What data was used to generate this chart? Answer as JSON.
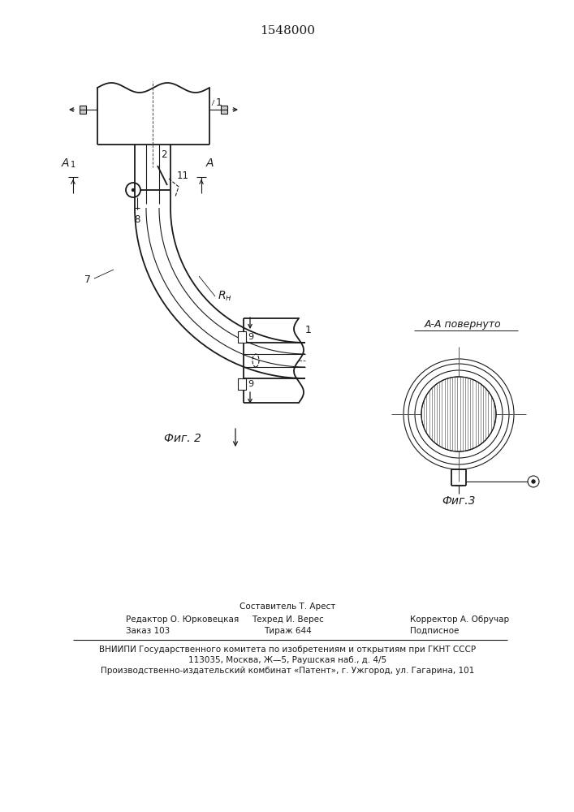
{
  "title": "1548000",
  "bg_color": "#ffffff",
  "line_color": "#1a1a1a",
  "fig2_label": "Фиг. 2",
  "fig3_label": "Фиг.3",
  "section_label": "А-А повернуто",
  "footer_line1": "Составитель Т. Арест",
  "footer_line2_col1": "Редактор О. Юрковецкая",
  "footer_line2_col2": "Техред И. Верес",
  "footer_line2_col3": "Корректор А. Обручар",
  "footer_line3_col1": "Заказ 103",
  "footer_line3_col2": "Тираж 644",
  "footer_line3_col3": "Подписное",
  "footer_vniiipi": "ВНИИПИ Государственного комитета по изобретениям и открытиям при ГКНТ СССР",
  "footer_address1": "113035, Москва, Ж—̵5, Раушская наб., д. 4/5",
  "footer_address2": "Производственно-издательский комбинат «Патент», г. Ужгород, ул. Гагарина, 101"
}
